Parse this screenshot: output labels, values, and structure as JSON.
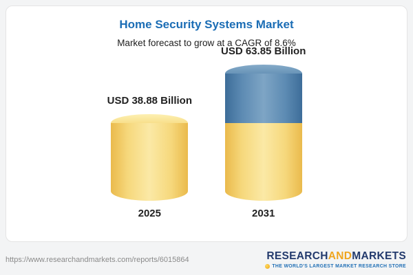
{
  "card": {
    "title": "Home Security Systems Market",
    "subtitle": "Market forecast to grow at a CAGR of 8.6%"
  },
  "chart_data": {
    "type": "bar",
    "categories": [
      "2025",
      "2031"
    ],
    "values": [
      38.88,
      63.85
    ],
    "value_labels": [
      "USD 38.88 Billion",
      "USD 63.85 Billion"
    ],
    "title": "Home Security Systems Market",
    "subtitle": "Market forecast to grow at a CAGR of 8.6%",
    "unit": "USD Billion",
    "cagr": "8.6%",
    "legend_position": "none",
    "grid": false,
    "notes": "2031 cylinder is yellow for the 2025 base value with a blue top segment representing growth from 38.88 to 63.85",
    "colors": {
      "base_bar": "#F6D87C",
      "growth_segment": "#5D8BB3",
      "title_text": "#1B6DB5"
    }
  },
  "footer": {
    "url": "https://www.researchandmarkets.com/reports/6015864",
    "logo": {
      "part1": "RESEARCH",
      "part2": "AND",
      "part3": "MARKETS",
      "tagline": "THE WORLD'S LARGEST MARKET RESEARCH STORE"
    }
  }
}
